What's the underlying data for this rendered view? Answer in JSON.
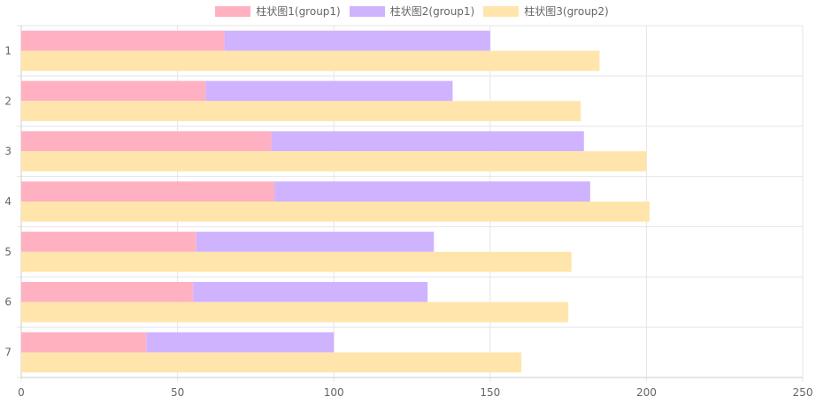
{
  "chart_data": {
    "type": "bar",
    "orientation": "horizontal",
    "categories": [
      "1",
      "2",
      "3",
      "4",
      "5",
      "6",
      "7"
    ],
    "series": [
      {
        "name": "柱状图1(group1)",
        "stack": "group1",
        "color": "#ffb1c1",
        "values": [
          65,
          59,
          80,
          81,
          56,
          55,
          40
        ]
      },
      {
        "name": "柱状图2(group1)",
        "stack": "group1",
        "color": "#cfb3ff",
        "values": [
          85,
          79,
          100,
          101,
          76,
          75,
          60
        ]
      },
      {
        "name": "柱状图3(group2)",
        "stack": "group2",
        "color": "#ffe5ac",
        "values": [
          185,
          179,
          200,
          201,
          176,
          175,
          160
        ]
      }
    ],
    "xlim": [
      0,
      250
    ],
    "xticks": [
      "0",
      "50",
      "100",
      "150",
      "200",
      "250"
    ],
    "grid": true,
    "legend_position": "top"
  }
}
